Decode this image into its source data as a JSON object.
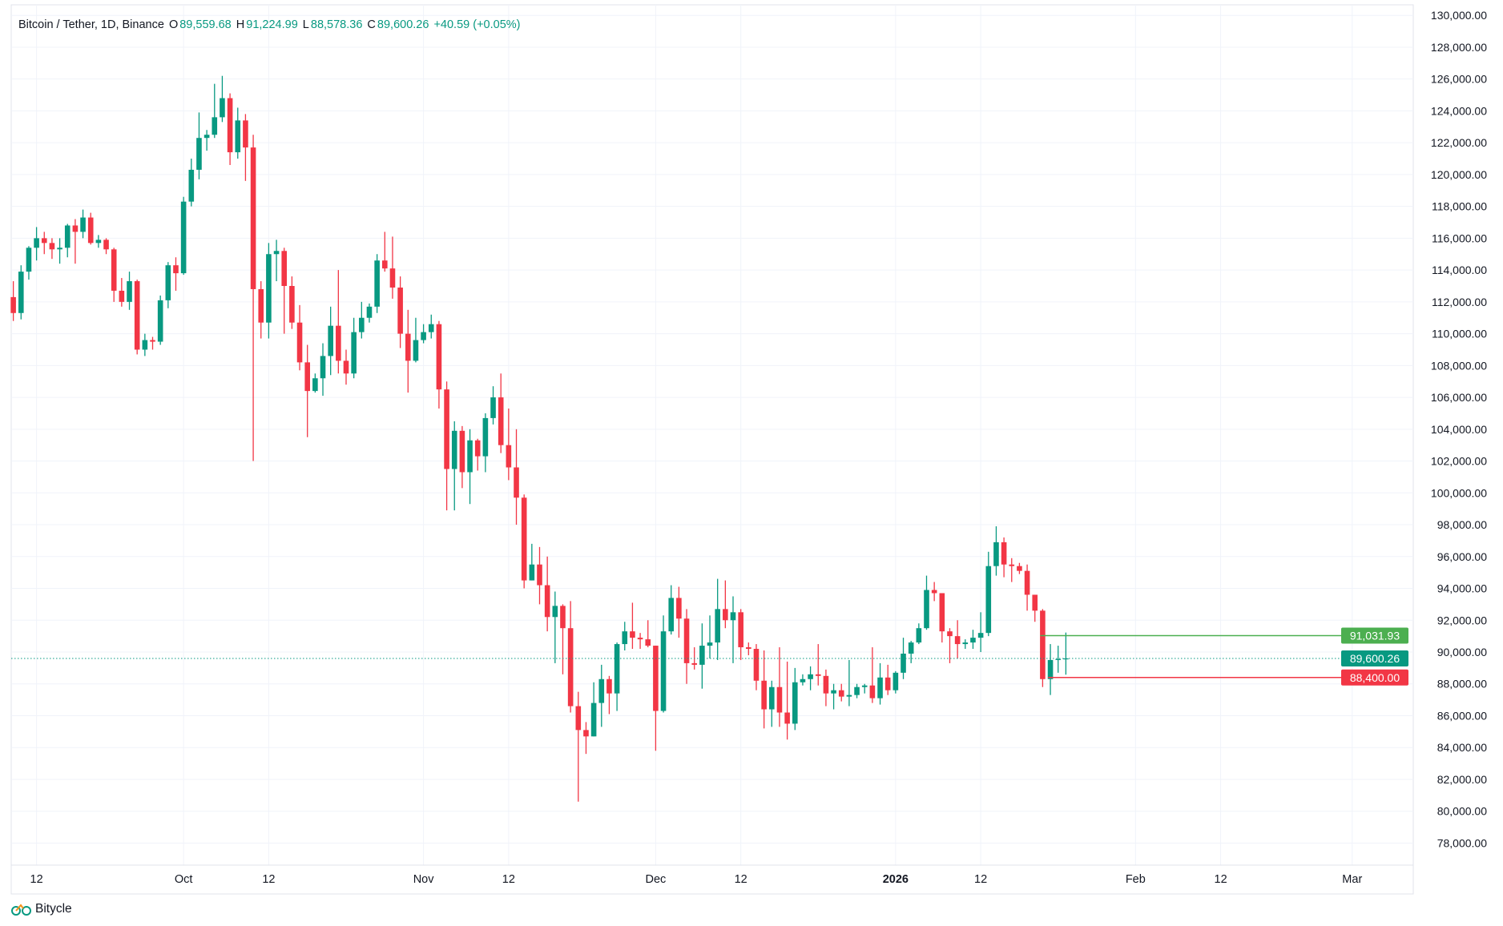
{
  "header": {
    "symbol": "Bitcoin / Tether, 1D, Binance",
    "open_label": "O",
    "open": "89,559.68",
    "high_label": "H",
    "high": "91,224.99",
    "low_label": "L",
    "low": "88,578.36",
    "close_label": "C",
    "close": "89,600.26",
    "change": "+40.59 (+0.05%)"
  },
  "brand": {
    "name": "Bitycle",
    "icon": "bicycle-logo-icon"
  },
  "colors": {
    "up": "#089981",
    "down": "#F23645",
    "resistance": "#4CAF50",
    "support": "#F23645",
    "grid": "#F0F3FA",
    "text": "#131722"
  },
  "chart_data": {
    "type": "candlestick",
    "title": "Bitcoin / Tether, 1D, Binance",
    "ylim": [
      77000,
      131000
    ],
    "xlim": [
      "2025-09-09",
      "2026-03-10"
    ],
    "grid": true,
    "y_ticks": [
      "130,000.00",
      "128,000.00",
      "126,000.00",
      "124,000.00",
      "122,000.00",
      "120,000.00",
      "118,000.00",
      "116,000.00",
      "114,000.00",
      "112,000.00",
      "110,000.00",
      "108,000.00",
      "106,000.00",
      "104,000.00",
      "102,000.00",
      "100,000.00",
      "98,000.00",
      "96,000.00",
      "94,000.00",
      "92,000.00",
      "90,000.00",
      "88,000.00",
      "86,000.00",
      "84,000.00",
      "82,000.00",
      "80,000.00",
      "78,000.00"
    ],
    "x_ticks": [
      {
        "date": "2025-09-12",
        "label": "12"
      },
      {
        "date": "2025-10-01",
        "label": "Oct"
      },
      {
        "date": "2025-10-12",
        "label": "12"
      },
      {
        "date": "2025-11-01",
        "label": "Nov"
      },
      {
        "date": "2025-11-12",
        "label": "12"
      },
      {
        "date": "2025-12-01",
        "label": "Dec"
      },
      {
        "date": "2025-12-12",
        "label": "12"
      },
      {
        "date": "2026-01-01",
        "label": "2026",
        "bold": true
      },
      {
        "date": "2026-01-12",
        "label": "12"
      },
      {
        "date": "2026-02-01",
        "label": "Feb"
      },
      {
        "date": "2026-02-12",
        "label": "12"
      },
      {
        "date": "2026-03-01",
        "label": "Mar"
      }
    ],
    "levels": [
      {
        "price": 91031.93,
        "label": "91,031.93",
        "color": "#4CAF50",
        "from": "2026-01-20"
      },
      {
        "price": 89600.26,
        "label": "89,600.26",
        "color": "#089981",
        "style": "dotted",
        "from": "2025-09-09"
      },
      {
        "price": 88400.0,
        "label": "88,400.00",
        "color": "#F23645",
        "from": "2026-01-21"
      }
    ],
    "candles_fields": [
      "date",
      "open",
      "high",
      "low",
      "close"
    ],
    "candles": [
      [
        "2025-09-09",
        112300,
        113300,
        110800,
        111300
      ],
      [
        "2025-09-10",
        111300,
        114300,
        110900,
        113900
      ],
      [
        "2025-09-11",
        113900,
        115500,
        113400,
        115400
      ],
      [
        "2025-09-12",
        115400,
        116700,
        114600,
        116000
      ],
      [
        "2025-09-13",
        116000,
        116400,
        115000,
        115700
      ],
      [
        "2025-09-14",
        115700,
        116000,
        114700,
        115300
      ],
      [
        "2025-09-15",
        115300,
        116000,
        114400,
        115400
      ],
      [
        "2025-09-16",
        115400,
        116900,
        114800,
        116800
      ],
      [
        "2025-09-17",
        116800,
        117200,
        114400,
        116400
      ],
      [
        "2025-09-18",
        116400,
        117800,
        116000,
        117300
      ],
      [
        "2025-09-19",
        117300,
        117600,
        115600,
        115700
      ],
      [
        "2025-09-20",
        115700,
        116200,
        115400,
        115900
      ],
      [
        "2025-09-21",
        115900,
        116000,
        115000,
        115300
      ],
      [
        "2025-09-22",
        115300,
        115400,
        112000,
        112700
      ],
      [
        "2025-09-23",
        112700,
        113500,
        111700,
        112000
      ],
      [
        "2025-09-24",
        112000,
        113900,
        111500,
        113300
      ],
      [
        "2025-09-25",
        113300,
        113400,
        108700,
        109000
      ],
      [
        "2025-09-26",
        109000,
        110000,
        108600,
        109600
      ],
      [
        "2025-09-27",
        109600,
        109800,
        109000,
        109500
      ],
      [
        "2025-09-28",
        109500,
        112400,
        109300,
        112100
      ],
      [
        "2025-09-29",
        112100,
        114500,
        111600,
        114300
      ],
      [
        "2025-09-30",
        114300,
        114800,
        112700,
        113800
      ],
      [
        "2025-10-01",
        113800,
        118600,
        113700,
        118300
      ],
      [
        "2025-10-02",
        118300,
        121000,
        118000,
        120300
      ],
      [
        "2025-10-03",
        120300,
        123900,
        119700,
        122300
      ],
      [
        "2025-10-04",
        122300,
        122800,
        121500,
        122500
      ],
      [
        "2025-10-05",
        122500,
        125700,
        122300,
        123600
      ],
      [
        "2025-10-06",
        123600,
        126200,
        123300,
        124800
      ],
      [
        "2025-10-07",
        124800,
        125100,
        120600,
        121400
      ],
      [
        "2025-10-08",
        121400,
        124200,
        121000,
        123400
      ],
      [
        "2025-10-09",
        123400,
        123800,
        119600,
        121700
      ],
      [
        "2025-10-10",
        121700,
        122500,
        102000,
        112800
      ],
      [
        "2025-10-11",
        112800,
        113300,
        109700,
        110700
      ],
      [
        "2025-10-12",
        110700,
        115700,
        109700,
        115000
      ],
      [
        "2025-10-13",
        115000,
        115900,
        113300,
        115200
      ],
      [
        "2025-10-14",
        115200,
        115400,
        110000,
        113000
      ],
      [
        "2025-10-15",
        113000,
        113600,
        110300,
        110700
      ],
      [
        "2025-10-16",
        110700,
        111800,
        107700,
        108200
      ],
      [
        "2025-10-17",
        108200,
        109300,
        103500,
        106400
      ],
      [
        "2025-10-18",
        106400,
        107500,
        106300,
        107200
      ],
      [
        "2025-10-19",
        107200,
        109400,
        106100,
        108600
      ],
      [
        "2025-10-20",
        108600,
        111700,
        107400,
        110500
      ],
      [
        "2025-10-21",
        110500,
        114000,
        107500,
        108300
      ],
      [
        "2025-10-22",
        108300,
        109000,
        106800,
        107500
      ],
      [
        "2025-10-23",
        107500,
        111000,
        107200,
        110100
      ],
      [
        "2025-10-24",
        110100,
        112000,
        109700,
        111000
      ],
      [
        "2025-10-25",
        111000,
        111900,
        110700,
        111700
      ],
      [
        "2025-10-26",
        111700,
        115000,
        111300,
        114600
      ],
      [
        "2025-10-27",
        114600,
        116400,
        113900,
        114100
      ],
      [
        "2025-10-28",
        114100,
        116100,
        112200,
        112900
      ],
      [
        "2025-10-29",
        112900,
        113600,
        109100,
        110000
      ],
      [
        "2025-10-30",
        110000,
        111500,
        106300,
        108300
      ],
      [
        "2025-10-31",
        108300,
        111000,
        108200,
        109600
      ],
      [
        "2025-11-01",
        109600,
        110600,
        109400,
        110100
      ],
      [
        "2025-11-02",
        110100,
        111200,
        109700,
        110600
      ],
      [
        "2025-11-03",
        110600,
        110800,
        105300,
        106500
      ],
      [
        "2025-11-04",
        106500,
        107000,
        98900,
        101500
      ],
      [
        "2025-11-05",
        101500,
        104500,
        98900,
        103900
      ],
      [
        "2025-11-06",
        103900,
        104200,
        100300,
        101300
      ],
      [
        "2025-11-07",
        101300,
        104000,
        99300,
        103300
      ],
      [
        "2025-11-08",
        103300,
        103400,
        101400,
        102300
      ],
      [
        "2025-11-09",
        102300,
        105000,
        101300,
        104700
      ],
      [
        "2025-11-10",
        104700,
        106700,
        104300,
        106000
      ],
      [
        "2025-11-11",
        106000,
        107500,
        102500,
        103000
      ],
      [
        "2025-11-12",
        103000,
        105300,
        100800,
        101600
      ],
      [
        "2025-11-13",
        101600,
        104000,
        98000,
        99700
      ],
      [
        "2025-11-14",
        99700,
        99900,
        94000,
        94500
      ],
      [
        "2025-11-15",
        94500,
        96800,
        94500,
        95500
      ],
      [
        "2025-11-16",
        95500,
        96600,
        93000,
        94200
      ],
      [
        "2025-11-17",
        94200,
        96000,
        91300,
        92200
      ],
      [
        "2025-11-18",
        92200,
        93800,
        89300,
        92900
      ],
      [
        "2025-11-19",
        92900,
        93000,
        88600,
        91500
      ],
      [
        "2025-11-20",
        91500,
        93200,
        86200,
        86600
      ],
      [
        "2025-11-21",
        86600,
        87500,
        80600,
        85100
      ],
      [
        "2025-11-22",
        85100,
        85600,
        83600,
        84700
      ],
      [
        "2025-11-23",
        84700,
        88100,
        84700,
        86800
      ],
      [
        "2025-11-24",
        86800,
        89200,
        85300,
        88300
      ],
      [
        "2025-11-25",
        88300,
        88500,
        86100,
        87400
      ],
      [
        "2025-11-26",
        87400,
        90600,
        86300,
        90500
      ],
      [
        "2025-11-27",
        90500,
        91900,
        90100,
        91300
      ],
      [
        "2025-11-28",
        91300,
        93100,
        90200,
        90900
      ],
      [
        "2025-11-29",
        90900,
        91200,
        90200,
        90800
      ],
      [
        "2025-11-30",
        90800,
        92000,
        90300,
        90400
      ],
      [
        "2025-12-01",
        90400,
        90400,
        83800,
        86300
      ],
      [
        "2025-12-02",
        86300,
        92300,
        86200,
        91300
      ],
      [
        "2025-12-03",
        91300,
        94200,
        91100,
        93400
      ],
      [
        "2025-12-04",
        93400,
        94100,
        90900,
        92100
      ],
      [
        "2025-12-05",
        92100,
        92700,
        88000,
        89300
      ],
      [
        "2025-12-06",
        89300,
        90300,
        88900,
        89200
      ],
      [
        "2025-12-07",
        89200,
        91800,
        87700,
        90400
      ],
      [
        "2025-12-08",
        90400,
        92300,
        89600,
        90600
      ],
      [
        "2025-12-09",
        90600,
        94600,
        89500,
        92700
      ],
      [
        "2025-12-10",
        92700,
        94500,
        91500,
        92000
      ],
      [
        "2025-12-11",
        92000,
        93500,
        89300,
        92500
      ],
      [
        "2025-12-12",
        92500,
        92700,
        89500,
        90300
      ],
      [
        "2025-12-13",
        90300,
        90600,
        89800,
        90200
      ],
      [
        "2025-12-14",
        90200,
        90500,
        87600,
        88200
      ],
      [
        "2025-12-15",
        88200,
        90100,
        85200,
        86400
      ],
      [
        "2025-12-16",
        86400,
        88200,
        85300,
        87800
      ],
      [
        "2025-12-17",
        87800,
        90300,
        85300,
        86200
      ],
      [
        "2025-12-18",
        86200,
        89400,
        84500,
        85500
      ],
      [
        "2025-12-19",
        85500,
        89000,
        85100,
        88100
      ],
      [
        "2025-12-20",
        88100,
        88600,
        87900,
        88300
      ],
      [
        "2025-12-21",
        88300,
        89100,
        87600,
        88600
      ],
      [
        "2025-12-22",
        88600,
        90500,
        87900,
        88500
      ],
      [
        "2025-12-23",
        88500,
        88900,
        86600,
        87400
      ],
      [
        "2025-12-24",
        87400,
        88000,
        86400,
        87600
      ],
      [
        "2025-12-25",
        87600,
        88000,
        86900,
        87200
      ],
      [
        "2025-12-26",
        87200,
        89500,
        86600,
        87300
      ],
      [
        "2025-12-27",
        87300,
        88000,
        87100,
        87800
      ],
      [
        "2025-12-28",
        87800,
        88000,
        87400,
        87900
      ],
      [
        "2025-12-29",
        87900,
        90300,
        86800,
        87100
      ],
      [
        "2025-12-30",
        87100,
        89300,
        86700,
        88400
      ],
      [
        "2025-12-31",
        88400,
        89200,
        87300,
        87600
      ],
      [
        "2026-01-01",
        87600,
        88800,
        87400,
        88700
      ],
      [
        "2026-01-02",
        88700,
        90900,
        88300,
        89900
      ],
      [
        "2026-01-03",
        89900,
        90700,
        89300,
        90600
      ],
      [
        "2026-01-04",
        90600,
        91800,
        90500,
        91500
      ],
      [
        "2026-01-05",
        91500,
        94800,
        91400,
        93900
      ],
      [
        "2026-01-06",
        93900,
        94400,
        93200,
        93700
      ],
      [
        "2026-01-07",
        93700,
        93700,
        90600,
        91300
      ],
      [
        "2026-01-08",
        91300,
        91500,
        89300,
        91000
      ],
      [
        "2026-01-09",
        91000,
        92000,
        89600,
        90500
      ],
      [
        "2026-01-10",
        90500,
        90800,
        90200,
        90600
      ],
      [
        "2026-01-11",
        90600,
        91400,
        90200,
        90900
      ],
      [
        "2026-01-12",
        90900,
        92500,
        90000,
        91200
      ],
      [
        "2026-01-13",
        91200,
        96300,
        91000,
        95400
      ],
      [
        "2026-01-14",
        95400,
        97900,
        94800,
        96900
      ],
      [
        "2026-01-15",
        96900,
        97200,
        94700,
        95500
      ],
      [
        "2026-01-16",
        95500,
        95900,
        94400,
        95400
      ],
      [
        "2026-01-17",
        95400,
        95600,
        94900,
        95100
      ],
      [
        "2026-01-18",
        95100,
        95500,
        92600,
        93600
      ],
      [
        "2026-01-19",
        93600,
        93600,
        91900,
        92600
      ],
      [
        "2026-01-20",
        92600,
        92700,
        87800,
        88300
      ],
      [
        "2026-01-21",
        88300,
        90500,
        87300,
        89500
      ],
      [
        "2026-01-22",
        89500,
        90400,
        88700,
        89559.68
      ],
      [
        "2026-01-23",
        89559.68,
        91224.99,
        88578.36,
        89600.26
      ]
    ]
  }
}
